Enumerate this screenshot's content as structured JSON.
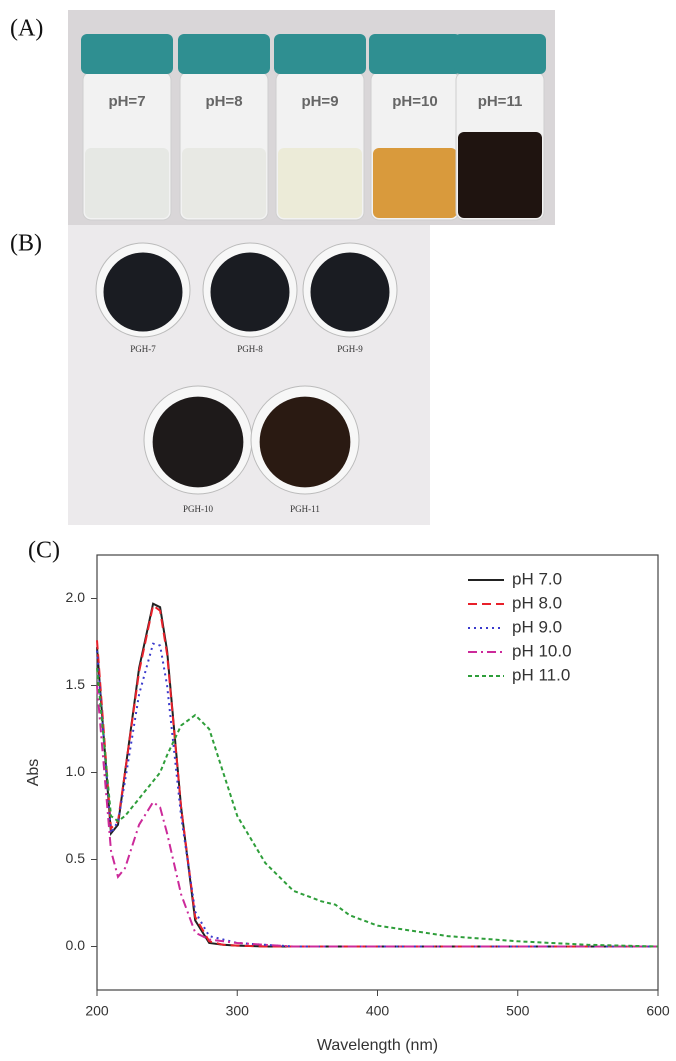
{
  "panel_a": {
    "label": "(A)",
    "vials": [
      {
        "label": "pH=7",
        "liquid": "#e6e8e4"
      },
      {
        "label": "pH=8",
        "liquid": "#e8e9e4"
      },
      {
        "label": "pH=9",
        "liquid": "#ecebd8"
      },
      {
        "label": "pH=10",
        "liquid": "#d99a3c"
      },
      {
        "label": "pH=11",
        "liquid": "#1f1410"
      }
    ]
  },
  "panel_b": {
    "label": "(B)",
    "dishes": [
      {
        "label": "PGH-7",
        "sample": "#1a1c22"
      },
      {
        "label": "PGH-8",
        "sample": "#1a1c22"
      },
      {
        "label": "PGH-9",
        "sample": "#1a1c22"
      },
      {
        "label": "PGH-10",
        "sample": "#1e1a1a"
      },
      {
        "label": "PGH-11",
        "sample": "#2a1a12"
      }
    ]
  },
  "chart_data": {
    "type": "line",
    "panel_label": "(C)",
    "x_label": "Wavelength (nm)",
    "y_label": "Abs",
    "x": [
      200,
      210,
      215,
      220,
      230,
      240,
      245,
      250,
      260,
      270,
      280,
      290,
      300,
      320,
      340,
      360,
      370,
      380,
      400,
      450,
      500,
      550,
      600
    ],
    "series": [
      {
        "name": "pH 7.0",
        "color": "#222222",
        "dash": "solid",
        "values": [
          1.72,
          0.65,
          0.7,
          1.0,
          1.6,
          1.97,
          1.95,
          1.7,
          0.8,
          0.15,
          0.02,
          0.01,
          0.005,
          0,
          0,
          0,
          0,
          0,
          0,
          0,
          0,
          0,
          0
        ]
      },
      {
        "name": "pH 8.0",
        "color": "#e8202a",
        "dash": "dashed",
        "values": [
          1.76,
          0.68,
          0.72,
          1.0,
          1.58,
          1.96,
          1.93,
          1.68,
          0.8,
          0.17,
          0.03,
          0.01,
          0.005,
          0,
          0,
          0,
          0,
          0,
          0,
          0,
          0,
          0,
          0
        ]
      },
      {
        "name": "pH 9.0",
        "color": "#3a3acc",
        "dash": "dotted",
        "values": [
          1.7,
          0.65,
          0.72,
          0.95,
          1.45,
          1.74,
          1.73,
          1.5,
          0.75,
          0.2,
          0.06,
          0.04,
          0.02,
          0.01,
          0,
          0,
          0,
          0,
          0,
          0,
          0,
          0,
          0
        ]
      },
      {
        "name": "pH 10.0",
        "color": "#cc2a9a",
        "dash": "dashdot",
        "values": [
          1.5,
          0.55,
          0.4,
          0.45,
          0.7,
          0.83,
          0.8,
          0.65,
          0.3,
          0.08,
          0.04,
          0.03,
          0.02,
          0.01,
          0,
          0,
          0,
          0,
          0,
          0,
          0,
          0,
          0
        ]
      },
      {
        "name": "pH 11.0",
        "color": "#2e9e3a",
        "dash": "short-dashed",
        "values": [
          1.6,
          0.75,
          0.72,
          0.75,
          0.85,
          0.95,
          1.0,
          1.1,
          1.27,
          1.33,
          1.25,
          1.0,
          0.75,
          0.48,
          0.32,
          0.26,
          0.24,
          0.18,
          0.12,
          0.06,
          0.03,
          0.01,
          0
        ]
      }
    ],
    "xlim": [
      200,
      600
    ],
    "xticks": [
      200,
      300,
      400,
      500,
      600
    ],
    "ylim": [
      -0.25,
      2.25
    ],
    "yticks": [
      {
        "value": 0,
        "label": "0.0"
      },
      {
        "value": 0.5,
        "label": "0.5"
      },
      {
        "value": 1,
        "label": "1.0"
      },
      {
        "value": 1.5,
        "label": "1.5"
      },
      {
        "value": 2,
        "label": "2.0"
      }
    ],
    "legend": "top-right"
  }
}
